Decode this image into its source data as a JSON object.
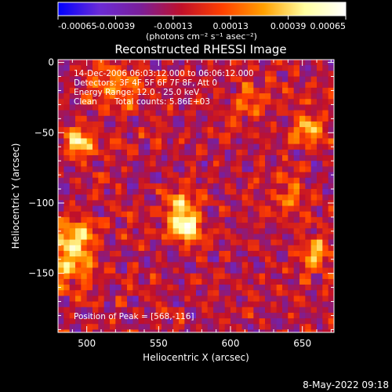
{
  "chart_data": {
    "type": "heatmap",
    "title": "Reconstructed RHESSI Image",
    "xlabel": "Heliocentric X (arcsec)",
    "ylabel": "Heliocentric Y (arcsec)",
    "xlim": [
      480,
      672
    ],
    "ylim": [
      -192,
      2
    ],
    "xticks": [
      500,
      550,
      600,
      650
    ],
    "yticks": [
      0,
      -50,
      -100,
      -150
    ],
    "colorbar": {
      "ticks": [
        -0.00065,
        -0.00039,
        -0.00013,
        0.00013,
        0.00039,
        0.00065
      ],
      "tick_labels": [
        "-0.00065",
        "-0.00039",
        "-0.00013",
        "0.00013",
        "0.00039",
        "0.00065"
      ],
      "range": [
        -0.00065,
        0.00065
      ],
      "units_label": "(photons cm⁻² s⁻¹ asec⁻²)",
      "colors": [
        "#0000ff",
        "#6a2bd6",
        "#7a1f9a",
        "#c0102a",
        "#ff4000",
        "#ffa000",
        "#ffffa0",
        "#ffffff"
      ]
    },
    "annotations": {
      "time_range": "14-Dec-2006 06:03:12.000 to 06:06:12.000",
      "detectors": "Detectors: 3F 4F 5F 6F 7F 8F, Att 0",
      "energy_range": "Energy Range: 12.0 - 25.0 keV",
      "clean": "Clean",
      "total_counts": "Total counts: 5.86E+03",
      "peak": "Position of Peak = [568,-116]"
    },
    "peak": {
      "x": 568,
      "y": -116
    },
    "sources": [
      {
        "x": 568,
        "y": -116,
        "amp": 0.00068,
        "sigma": 8
      },
      {
        "x": 565,
        "y": -100,
        "amp": 0.0004,
        "sigma": 8
      },
      {
        "x": 495,
        "y": -57,
        "amp": 0.00055,
        "sigma": 7
      },
      {
        "x": 655,
        "y": -47,
        "amp": 0.0005,
        "sigma": 8
      },
      {
        "x": 492,
        "y": -125,
        "amp": 0.00045,
        "sigma": 10
      },
      {
        "x": 488,
        "y": -145,
        "amp": 0.00035,
        "sigma": 12
      },
      {
        "x": 660,
        "y": -135,
        "amp": 0.00035,
        "sigma": 9
      },
      {
        "x": 520,
        "y": -20,
        "amp": 0.0003,
        "sigma": 12
      },
      {
        "x": 615,
        "y": -25,
        "amp": 0.00025,
        "sigma": 10
      },
      {
        "x": 640,
        "y": -95,
        "amp": 0.00022,
        "sigma": 10
      }
    ],
    "timestamp": "8-May-2022 09:18"
  }
}
